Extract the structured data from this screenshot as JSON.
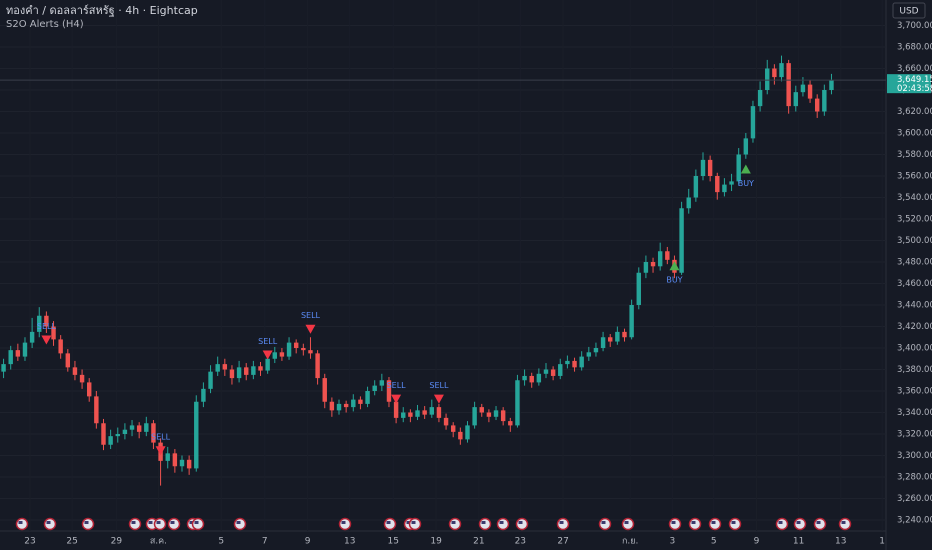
{
  "chart_data": {
    "type": "candlestick",
    "title": "ทองคำ / ดอลลาร์สหรัฐ · 4h · Eightcap",
    "subtitle": "S2O Alerts (H4)",
    "currency": "USD",
    "countdown": "02:43:58",
    "last_price": {
      "value": 3649.15,
      "label": "3,649.15"
    },
    "up_color": "#26a69a",
    "down_color": "#ef5350",
    "grid": true,
    "ylim": [
      3230,
      3700
    ],
    "yticks": [
      {
        "value": 3240,
        "label": "3,240.00"
      },
      {
        "value": 3260,
        "label": "3,260.00"
      },
      {
        "value": 3280,
        "label": "3,280.00"
      },
      {
        "value": 3300,
        "label": "3,300.00"
      },
      {
        "value": 3320,
        "label": "3,320.00"
      },
      {
        "value": 3340,
        "label": "3,340.00"
      },
      {
        "value": 3360,
        "label": "3,360.00"
      },
      {
        "value": 3380,
        "label": "3,380.00"
      },
      {
        "value": 3400,
        "label": "3,400.00"
      },
      {
        "value": 3420,
        "label": "3,420.00"
      },
      {
        "value": 3440,
        "label": "3,440.00"
      },
      {
        "value": 3460,
        "label": "3,460.00"
      },
      {
        "value": 3480,
        "label": "3,480.00"
      },
      {
        "value": 3500,
        "label": "3,500.00"
      },
      {
        "value": 3520,
        "label": "3,520.00"
      },
      {
        "value": 3540,
        "label": "3,540.00"
      },
      {
        "value": 3560,
        "label": "3,560.00"
      },
      {
        "value": 3580,
        "label": "3,580.00"
      },
      {
        "value": 3600,
        "label": "3,600.00"
      },
      {
        "value": 3620,
        "label": "3,620.00"
      },
      {
        "value": 3640,
        "label": "3,640.00"
      },
      {
        "value": 3660,
        "label": "3,660.00"
      },
      {
        "value": 3680,
        "label": "3,680.00"
      },
      {
        "value": 3700,
        "label": "3,700.00"
      }
    ],
    "xlim": [
      -0.5,
      123.5
    ],
    "xticks": [
      {
        "value": 3.7,
        "label": "23"
      },
      {
        "value": 9.6,
        "label": "25"
      },
      {
        "value": 15.8,
        "label": "29"
      },
      {
        "value": 21.7,
        "label": "ส.ค."
      },
      {
        "value": 30.5,
        "label": "5"
      },
      {
        "value": 36.6,
        "label": "7"
      },
      {
        "value": 42.6,
        "label": "9"
      },
      {
        "value": 48.5,
        "label": "13"
      },
      {
        "value": 54.6,
        "label": "15"
      },
      {
        "value": 60.6,
        "label": "19"
      },
      {
        "value": 66.6,
        "label": "21"
      },
      {
        "value": 72.4,
        "label": "23"
      },
      {
        "value": 78.4,
        "label": "27"
      },
      {
        "value": 87.8,
        "label": "ก.ย."
      },
      {
        "value": 93.7,
        "label": "3"
      },
      {
        "value": 99.5,
        "label": "5"
      },
      {
        "value": 105.5,
        "label": "9"
      },
      {
        "value": 111.4,
        "label": "11"
      },
      {
        "value": 117.3,
        "label": "13"
      },
      {
        "value": 123.1,
        "label": "1"
      }
    ],
    "signals": [
      {
        "label": "SELL",
        "index": 6,
        "price": 3407
      },
      {
        "label": "SELL",
        "index": 22,
        "price": 3304
      },
      {
        "label": "SELL",
        "index": 37,
        "price": 3393
      },
      {
        "label": "SELL",
        "index": 43,
        "price": 3417
      },
      {
        "label": "SELL",
        "index": 55,
        "price": 3352
      },
      {
        "label": "SELL",
        "index": 61,
        "price": 3352
      },
      {
        "label": "BUY",
        "index": 94,
        "price": 3477
      },
      {
        "label": "BUY",
        "index": 104,
        "price": 3567
      }
    ],
    "ohlc": [
      [
        3378,
        3390,
        3372,
        3385
      ],
      [
        3385,
        3402,
        3380,
        3398
      ],
      [
        3398,
        3404,
        3388,
        3392
      ],
      [
        3392,
        3410,
        3388,
        3405
      ],
      [
        3405,
        3428,
        3400,
        3415
      ],
      [
        3415,
        3438,
        3410,
        3430
      ],
      [
        3430,
        3434,
        3414,
        3420
      ],
      [
        3420,
        3425,
        3402,
        3408
      ],
      [
        3408,
        3412,
        3390,
        3395
      ],
      [
        3395,
        3399,
        3378,
        3382
      ],
      [
        3382,
        3388,
        3370,
        3375
      ],
      [
        3375,
        3380,
        3362,
        3368
      ],
      [
        3368,
        3372,
        3350,
        3355
      ],
      [
        3355,
        3360,
        3325,
        3330
      ],
      [
        3330,
        3334,
        3305,
        3310
      ],
      [
        3310,
        3324,
        3306,
        3318
      ],
      [
        3318,
        3326,
        3312,
        3320
      ],
      [
        3320,
        3330,
        3315,
        3324
      ],
      [
        3324,
        3333,
        3318,
        3328
      ],
      [
        3328,
        3331,
        3316,
        3322
      ],
      [
        3322,
        3336,
        3318,
        3330
      ],
      [
        3330,
        3333,
        3306,
        3312
      ],
      [
        3312,
        3316,
        3272,
        3295
      ],
      [
        3295,
        3308,
        3288,
        3302
      ],
      [
        3302,
        3306,
        3284,
        3290
      ],
      [
        3290,
        3300,
        3285,
        3296
      ],
      [
        3296,
        3300,
        3282,
        3288
      ],
      [
        3288,
        3356,
        3285,
        3350
      ],
      [
        3350,
        3368,
        3345,
        3362
      ],
      [
        3362,
        3384,
        3358,
        3378
      ],
      [
        3378,
        3392,
        3374,
        3385
      ],
      [
        3385,
        3390,
        3374,
        3380
      ],
      [
        3380,
        3384,
        3366,
        3372
      ],
      [
        3372,
        3388,
        3368,
        3382
      ],
      [
        3382,
        3386,
        3370,
        3375
      ],
      [
        3375,
        3388,
        3371,
        3383
      ],
      [
        3383,
        3387,
        3374,
        3379
      ],
      [
        3379,
        3395,
        3376,
        3390
      ],
      [
        3390,
        3401,
        3386,
        3396
      ],
      [
        3396,
        3400,
        3388,
        3392
      ],
      [
        3392,
        3410,
        3389,
        3405
      ],
      [
        3405,
        3408,
        3395,
        3400
      ],
      [
        3400,
        3404,
        3393,
        3398
      ],
      [
        3398,
        3410,
        3390,
        3395
      ],
      [
        3395,
        3398,
        3366,
        3372
      ],
      [
        3372,
        3376,
        3344,
        3350
      ],
      [
        3350,
        3354,
        3336,
        3342
      ],
      [
        3342,
        3352,
        3338,
        3348
      ],
      [
        3348,
        3351,
        3340,
        3345
      ],
      [
        3345,
        3357,
        3341,
        3352
      ],
      [
        3352,
        3355,
        3343,
        3348
      ],
      [
        3348,
        3364,
        3345,
        3360
      ],
      [
        3360,
        3370,
        3356,
        3365
      ],
      [
        3365,
        3376,
        3360,
        3370
      ],
      [
        3370,
        3373,
        3345,
        3350
      ],
      [
        3350,
        3354,
        3330,
        3335
      ],
      [
        3335,
        3345,
        3331,
        3340
      ],
      [
        3340,
        3343,
        3331,
        3336
      ],
      [
        3336,
        3347,
        3333,
        3342
      ],
      [
        3342,
        3346,
        3334,
        3338
      ],
      [
        3338,
        3352,
        3335,
        3345
      ],
      [
        3345,
        3348,
        3331,
        3335
      ],
      [
        3335,
        3339,
        3324,
        3328
      ],
      [
        3328,
        3331,
        3317,
        3322
      ],
      [
        3322,
        3326,
        3310,
        3315
      ],
      [
        3315,
        3332,
        3312,
        3328
      ],
      [
        3328,
        3350,
        3325,
        3345
      ],
      [
        3345,
        3348,
        3336,
        3340
      ],
      [
        3340,
        3343,
        3331,
        3336
      ],
      [
        3336,
        3346,
        3333,
        3342
      ],
      [
        3342,
        3345,
        3328,
        3332
      ],
      [
        3332,
        3335,
        3322,
        3328
      ],
      [
        3328,
        3375,
        3326,
        3370
      ],
      [
        3370,
        3380,
        3365,
        3374
      ],
      [
        3374,
        3377,
        3363,
        3368
      ],
      [
        3368,
        3381,
        3365,
        3376
      ],
      [
        3376,
        3386,
        3372,
        3380
      ],
      [
        3380,
        3383,
        3370,
        3374
      ],
      [
        3374,
        3390,
        3371,
        3385
      ],
      [
        3385,
        3393,
        3381,
        3388
      ],
      [
        3388,
        3391,
        3378,
        3382
      ],
      [
        3382,
        3397,
        3379,
        3392
      ],
      [
        3392,
        3401,
        3388,
        3396
      ],
      [
        3396,
        3405,
        3392,
        3400
      ],
      [
        3400,
        3415,
        3397,
        3410
      ],
      [
        3410,
        3413,
        3401,
        3406
      ],
      [
        3406,
        3420,
        3403,
        3415
      ],
      [
        3415,
        3418,
        3406,
        3410
      ],
      [
        3410,
        3445,
        3408,
        3440
      ],
      [
        3440,
        3475,
        3436,
        3470
      ],
      [
        3470,
        3486,
        3465,
        3480
      ],
      [
        3480,
        3484,
        3470,
        3476
      ],
      [
        3476,
        3498,
        3472,
        3490
      ],
      [
        3490,
        3494,
        3478,
        3482
      ],
      [
        3482,
        3486,
        3465,
        3470
      ],
      [
        3470,
        3536,
        3468,
        3530
      ],
      [
        3530,
        3548,
        3525,
        3540
      ],
      [
        3540,
        3566,
        3536,
        3560
      ],
      [
        3560,
        3582,
        3556,
        3575
      ],
      [
        3575,
        3579,
        3555,
        3560
      ],
      [
        3560,
        3563,
        3538,
        3545
      ],
      [
        3545,
        3558,
        3541,
        3552
      ],
      [
        3552,
        3562,
        3546,
        3555
      ],
      [
        3555,
        3586,
        3552,
        3580
      ],
      [
        3580,
        3600,
        3576,
        3595
      ],
      [
        3595,
        3630,
        3591,
        3625
      ],
      [
        3625,
        3648,
        3620,
        3640
      ],
      [
        3640,
        3668,
        3636,
        3660
      ],
      [
        3660,
        3664,
        3645,
        3652
      ],
      [
        3652,
        3672,
        3648,
        3665
      ],
      [
        3665,
        3668,
        3618,
        3625
      ],
      [
        3625,
        3644,
        3620,
        3638
      ],
      [
        3638,
        3652,
        3634,
        3645
      ],
      [
        3645,
        3649,
        3628,
        3632
      ],
      [
        3632,
        3636,
        3614,
        3620
      ],
      [
        3620,
        3645,
        3616,
        3640
      ],
      [
        3640,
        3655,
        3636,
        3649.15
      ]
    ]
  }
}
